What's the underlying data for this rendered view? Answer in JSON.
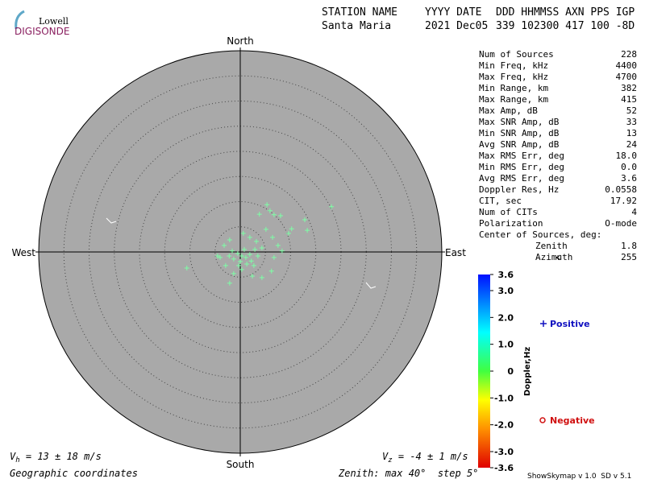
{
  "logo": {
    "top": "Lowell",
    "bottom": "DIGISONDE"
  },
  "header": {
    "labels": [
      "STATION NAME",
      "YYYY DATE",
      "DDD HHMMSS AXN PPS IGP"
    ],
    "values": [
      "Santa Maria",
      "2021 Dec05",
      "339 102300 417 100 -8D"
    ]
  },
  "stats": {
    "rows": [
      [
        "Num of Sources",
        "228"
      ],
      [
        "Min Freq, kHz",
        "4400"
      ],
      [
        "Max Freq, kHz",
        "4700"
      ],
      [
        "Min Range, km",
        "382"
      ],
      [
        "Max Range, km",
        "415"
      ],
      [
        "Max Amp, dB",
        "52"
      ],
      [
        "Max SNR Amp, dB",
        "33"
      ],
      [
        "Min SNR Amp, dB",
        "13"
      ],
      [
        "Avg SNR Amp, dB",
        "24"
      ],
      [
        "Max RMS Err, deg",
        "18.0"
      ],
      [
        "Min RMS Err, deg",
        "0.0"
      ],
      [
        "Avg RMS Err, deg",
        "3.6"
      ],
      [
        "Doppler Res, Hz",
        "0.0558"
      ],
      [
        "CIT, sec",
        "17.92"
      ],
      [
        "Num of CITs",
        "4"
      ],
      [
        "Polarization",
        "O-mode"
      ]
    ],
    "center": {
      "title": "Center of Sources, deg:",
      "rows": [
        [
          "Zenith",
          "1.8"
        ],
        [
          "Azimuth",
          "255"
        ]
      ]
    }
  },
  "chart_data": {
    "type": "polar-scatter",
    "directions": {
      "north": "North",
      "south": "South",
      "east": "East",
      "west": "West"
    },
    "color": "#7dffa6",
    "xlim": [
      -40,
      40
    ],
    "ylim": [
      -40,
      40
    ],
    "rticks": [
      5,
      10,
      15,
      20,
      25,
      30,
      35
    ],
    "x": [
      18.1,
      12.8,
      13.3,
      10.2,
      9.6,
      8,
      6.7,
      5.3,
      5.9,
      3.8,
      5.1,
      6.4,
      7.5,
      8.3,
      6.7,
      6.2,
      4.3,
      2.4,
      -2.1,
      -1.3,
      -10.6,
      -4,
      -3.2,
      -2.1,
      0.6,
      1.9,
      3.2,
      4.3,
      2.7,
      0.3,
      -2.9,
      -4.5,
      -0.5,
      0.3,
      1.1,
      -1.3,
      1.9,
      0,
      0.8,
      -1.6,
      2.2,
      -0.3,
      1.3,
      -2.2,
      3.5,
      2.9
    ],
    "values": [
      9.0,
      6.4,
      4.3,
      4.6,
      3.7,
      7.2,
      7.4,
      9.4,
      8.2,
      7.5,
      4.5,
      2.9,
      1.3,
      0.2,
      -1.1,
      -3.8,
      -5.1,
      -4.8,
      -6.2,
      -4.3,
      -3.2,
      -1.1,
      1.3,
      2.4,
      3.7,
      2.9,
      2.1,
      0.8,
      -2.7,
      -3.5,
      -2.7,
      -0.8,
      -0.3,
      -0.8,
      -1.1,
      -1.4,
      -0.5,
      -1.9,
      0.5,
      0.2,
      -1.8,
      -2.7,
      -2.4,
      -0.8,
      -0.8,
      0.5
    ]
  },
  "colorbar": {
    "label": "Doppler,Hz",
    "ylim": [
      -3.6,
      3.6
    ],
    "yticks": [
      3.6,
      {
        "value": 3.0,
        "label": "3.0"
      },
      {
        "value": 2.0,
        "label": "2.0"
      },
      {
        "value": 1.0,
        "label": "1.0"
      },
      0,
      {
        "value": -1.0,
        "label": "-1.0"
      },
      {
        "value": -2.0,
        "label": "-2.0"
      },
      {
        "value": -3.0,
        "label": "-3.0"
      },
      -3.6
    ]
  },
  "legend": {
    "positive": "Positive",
    "negative": "Negative"
  },
  "footer": {
    "vh": {
      "symbol": "V",
      "sub": "h",
      "text": " = 13 ± 18 m/s"
    },
    "vz": {
      "symbol": "V",
      "sub": "z",
      "text": " = -4 ± 1 m/s"
    },
    "coords": "Geographic coordinates",
    "zenith": "Zenith: max 40°  step 5°",
    "version": "ShowSkymap v 1.0  SD v 5.1"
  }
}
